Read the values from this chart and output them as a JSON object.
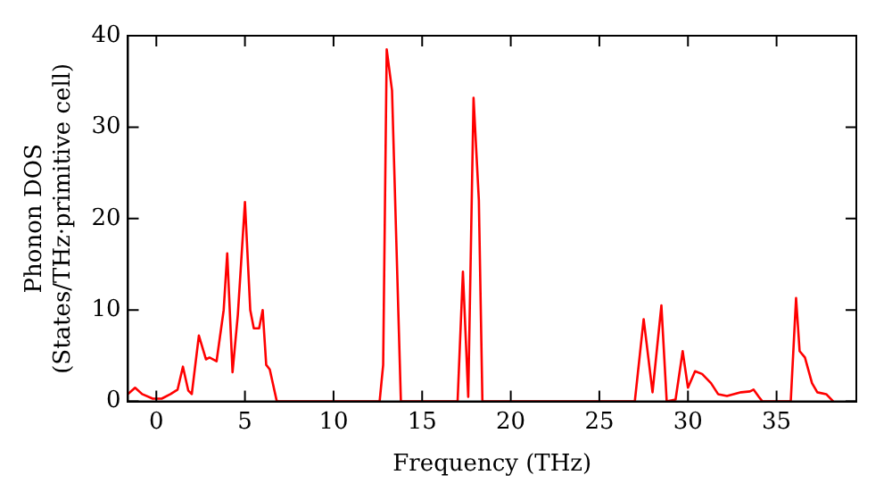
{
  "chart_data": {
    "type": "line",
    "xlabel": "Frequency (THz)",
    "ylabel": "Phonon DOS\n(States/THz·primitive cell)",
    "xlim": [
      -1.6,
      39.5
    ],
    "ylim": [
      0,
      40
    ],
    "xticks": [
      0,
      5,
      10,
      15,
      20,
      25,
      30,
      35
    ],
    "yticks": [
      0,
      10,
      20,
      30,
      40
    ],
    "grid": false,
    "legend": false,
    "marker": "none",
    "line_style": "solid",
    "x": [
      -1.6,
      -1.2,
      -0.8,
      -0.2,
      0.3,
      0.8,
      1.2,
      1.5,
      1.8,
      2.0,
      2.4,
      2.8,
      3.0,
      3.4,
      3.8,
      4.0,
      4.3,
      4.6,
      5.0,
      5.3,
      5.5,
      5.8,
      6.0,
      6.2,
      6.4,
      6.8,
      12.6,
      12.8,
      13.0,
      13.3,
      13.8,
      17.0,
      17.3,
      17.6,
      17.9,
      18.2,
      18.4,
      27.0,
      27.5,
      28.0,
      28.5,
      28.8,
      29.3,
      29.7,
      30.0,
      30.4,
      30.8,
      31.3,
      31.7,
      32.2,
      33.0,
      33.5,
      33.7,
      34.0,
      34.2,
      35.8,
      36.1,
      36.3,
      36.6,
      37.0,
      37.3,
      37.8,
      38.2
    ],
    "series": [
      {
        "color": "#ff0000",
        "values": [
          0.8,
          1.5,
          0.8,
          0.3,
          0.3,
          0.8,
          1.3,
          3.8,
          1.2,
          0.8,
          7.2,
          4.6,
          4.8,
          4.4,
          10,
          16.2,
          3.2,
          9.5,
          21.8,
          10,
          8,
          8,
          10,
          4,
          3.5,
          0,
          0,
          4,
          38.5,
          34,
          0,
          0,
          14.2,
          0.5,
          33.2,
          22,
          0,
          0,
          9,
          1,
          10.5,
          0,
          0.2,
          5.5,
          1.5,
          3.3,
          3,
          2,
          0.8,
          0.6,
          1,
          1.1,
          1.3,
          0.5,
          0,
          0,
          11.3,
          5.5,
          4.8,
          2,
          1,
          0.8,
          0
        ]
      }
    ]
  }
}
